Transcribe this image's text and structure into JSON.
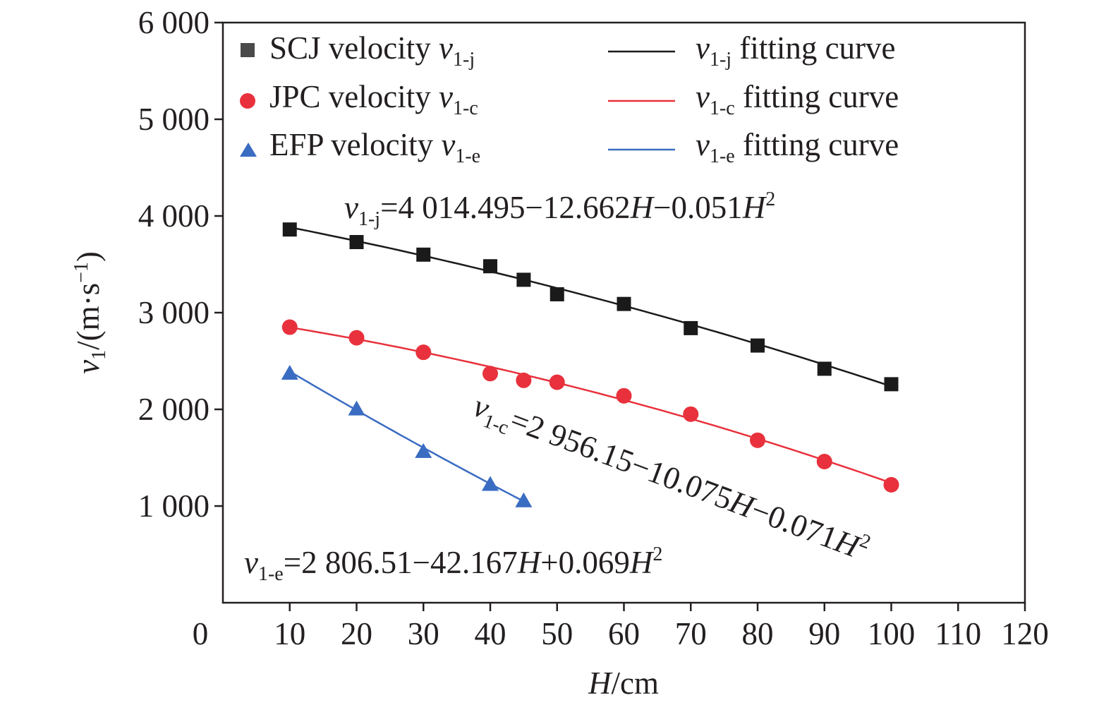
{
  "chart_data": {
    "type": "scatter",
    "xlabel": {
      "symbol": "H",
      "unit": "/cm"
    },
    "ylabel": {
      "symbol": "v",
      "sub": "1",
      "unit": "/(m·s",
      "exp": "−1",
      "close": ")"
    },
    "xlim": [
      0,
      120
    ],
    "ylim": [
      0,
      6000
    ],
    "x_ticks": [
      0,
      10,
      20,
      30,
      40,
      50,
      60,
      70,
      80,
      90,
      100,
      110,
      120
    ],
    "x_tick_labels": [
      "0",
      "10",
      "20",
      "30",
      "40",
      "50",
      "60",
      "70",
      "80",
      "90",
      "100",
      "110",
      "120"
    ],
    "y_ticks": [
      1000,
      2000,
      3000,
      4000,
      5000,
      6000
    ],
    "y_tick_labels": [
      "1 000",
      "2 000",
      "3 000",
      "4 000",
      "5 000",
      "6 000"
    ],
    "grid": false,
    "legend_position": "top",
    "series": [
      {
        "key": "scj",
        "name_prefix": "SCJ velocity",
        "name_symbol": "v",
        "name_sub": "1-j",
        "marker": "square",
        "color": "#1a1a1a",
        "x": [
          10,
          20,
          30,
          40,
          45,
          50,
          60,
          70,
          80,
          90,
          100
        ],
        "y": [
          3860,
          3730,
          3600,
          3480,
          3340,
          3190,
          3090,
          2840,
          2660,
          2420,
          2260
        ],
        "fit_label_symbol": "v",
        "fit_label_sub": "1-j",
        "fit_label_suffix": "fitting curve",
        "fit_coeffs": [
          4014.495,
          -12.662,
          -0.051
        ],
        "fit_range": [
          10,
          100
        ]
      },
      {
        "key": "jpc",
        "name_prefix": "JPC velocity",
        "name_symbol": "v",
        "name_sub": "1-c",
        "marker": "circle",
        "color": "#e8313c",
        "x": [
          10,
          20,
          30,
          40,
          45,
          50,
          60,
          70,
          80,
          90,
          100
        ],
        "y": [
          2850,
          2740,
          2590,
          2370,
          2300,
          2280,
          2140,
          1950,
          1680,
          1460,
          1220
        ],
        "fit_label_symbol": "v",
        "fit_label_sub": "1-c",
        "fit_label_suffix": "fitting curve",
        "fit_coeffs": [
          2956.15,
          -10.075,
          -0.071
        ],
        "fit_range": [
          10,
          100
        ]
      },
      {
        "key": "efp",
        "name_prefix": "EFP velocity",
        "name_symbol": "v",
        "name_sub": "1-e",
        "marker": "triangle",
        "color": "#3a6cc2",
        "x": [
          10,
          20,
          30,
          40,
          45
        ],
        "y": [
          2380,
          2010,
          1570,
          1230,
          1060
        ],
        "fit_label_symbol": "v",
        "fit_label_sub": "1-e",
        "fit_label_suffix": "fitting curve",
        "fit_coeffs": [
          2806.51,
          -42.167,
          0.069
        ],
        "fit_range": [
          10,
          45
        ]
      }
    ],
    "annotations": {
      "scj": {
        "v": "v",
        "sub": "1-j",
        "pre": "=4 014.495−12.662",
        "H1": "H",
        "mid": "−0.051",
        "H2": "H",
        "exp": "2"
      },
      "jpc": {
        "v": "v",
        "sub": "1-c",
        "pre": "=2 956.15−10.075",
        "H1": "H",
        "mid": "−0.071",
        "H2": "H",
        "exp": "2"
      },
      "efp": {
        "v": "v",
        "sub": "1-e",
        "pre": "=2 806.51−42.167",
        "H1": "H",
        "mid": "+0.069",
        "H2": "H",
        "exp": "2"
      }
    }
  }
}
